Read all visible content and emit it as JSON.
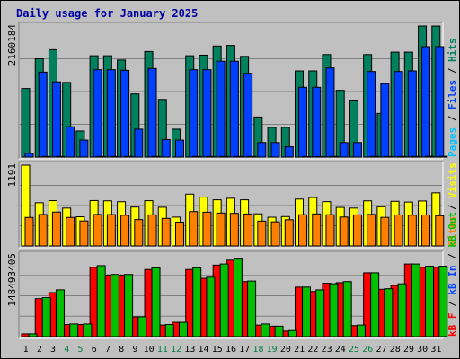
{
  "chart_data": {
    "type": "bar",
    "title": "Daily usage for January 2025",
    "categories": [
      "1",
      "2",
      "3",
      "4",
      "5",
      "6",
      "7",
      "8",
      "9",
      "10",
      "11",
      "12",
      "13",
      "14",
      "15",
      "16",
      "17",
      "18",
      "19",
      "20",
      "21",
      "22",
      "23",
      "24",
      "25",
      "26",
      "27",
      "28",
      "29",
      "30",
      "31"
    ],
    "weekend_days": [
      4,
      5,
      11,
      12,
      18,
      19,
      25,
      26
    ],
    "colors": {
      "hits": "#00805c",
      "files": "#0040ff",
      "pages": "#00c0ff",
      "visits": "#ffff00",
      "sites": "#ff8000",
      "kb_f": "#ff0000",
      "kb_in": "#00c000",
      "kb_out": "#ff8000",
      "weekday_label": "#000000",
      "weekend_label": "#008040"
    },
    "panels": [
      {
        "id": "hits-files-pages",
        "ymax_label": "2160184",
        "ymax": 2160184,
        "legend": [
          {
            "key": "pages",
            "label": "Pages",
            "color": "#00c0ff"
          },
          {
            "key": "sep1",
            "label": " / ",
            "color": "#000000"
          },
          {
            "key": "files",
            "label": "Files",
            "color": "#0040ff"
          },
          {
            "key": "sep2",
            "label": " / ",
            "color": "#000000"
          },
          {
            "key": "hits",
            "label": "Hits",
            "color": "#00805c"
          }
        ],
        "series": [
          {
            "key": "hits",
            "color": "#00805c",
            "values": [
              1130000,
              1620000,
              1770000,
              1230000,
              430000,
              1670000,
              1670000,
              1600000,
              1040000,
              1740000,
              950000,
              460000,
              1670000,
              1680000,
              1830000,
              1840000,
              1660000,
              660000,
              490000,
              490000,
              1420000,
              1420000,
              1690000,
              1100000,
              940000,
              1690000,
              720000,
              1730000,
              1730000,
              2160000,
              2160000
            ]
          },
          {
            "key": "files",
            "color": "#0040ff",
            "values": [
              60000,
              1400000,
              1240000,
              500000,
              280000,
              1440000,
              1440000,
              1430000,
              460000,
              1460000,
              290000,
              280000,
              1440000,
              1440000,
              1580000,
              1580000,
              1380000,
              240000,
              240000,
              170000,
              1150000,
              1150000,
              1470000,
              240000,
              240000,
              1410000,
              1210000,
              1410000,
              1420000,
              1820000,
              1820000
            ]
          },
          {
            "key": "pages",
            "color": "#00c0ff",
            "values": [
              6000,
              10000,
              10000,
              6000,
              4000,
              10000,
              10000,
              10000,
              4000,
              10000,
              4000,
              3000,
              10000,
              10000,
              10000,
              10000,
              10000,
              3000,
              3000,
              3000,
              8000,
              8000,
              10000,
              3000,
              3000,
              10000,
              9000,
              10000,
              10000,
              12000,
              12000
            ]
          }
        ]
      },
      {
        "id": "visits-sites",
        "ymax_label": "1191",
        "ymax": 1191,
        "legend": [
          {
            "key": "sites",
            "label": "Sites",
            "color": "#ff8000"
          },
          {
            "key": "sep1",
            "label": " / ",
            "color": "#000000"
          },
          {
            "key": "visits",
            "label": "Visits",
            "color": "#ffff00"
          }
        ],
        "series": [
          {
            "key": "visits",
            "color": "#ffff00",
            "values": [
              1191,
              637,
              668,
              558,
              430,
              669,
              665,
              652,
              573,
              667,
              570,
              425,
              764,
              720,
              680,
              703,
              680,
              473,
              423,
              433,
              691,
              714,
              653,
              568,
              558,
              665,
              578,
              658,
              647,
              663,
              783
            ]
          },
          {
            "key": "sites",
            "color": "#ff8000",
            "values": [
              420,
              464,
              500,
              420,
              368,
              464,
              462,
              452,
              388,
              458,
              406,
              350,
              506,
              498,
              485,
              480,
              471,
              366,
              355,
              386,
              460,
              472,
              460,
              426,
              458,
              465,
              421,
              457,
              453,
              457,
              446
            ]
          }
        ]
      },
      {
        "id": "kbf-kbin-kbout",
        "ymax_label": "148493405",
        "ymax": 148493405,
        "legend": [
          {
            "key": "kb_f",
            "label": "kB F",
            "color": "#ff0000"
          },
          {
            "key": "sep1",
            "label": " / ",
            "color": "#000000"
          },
          {
            "key": "kb_in",
            "label": "kB In",
            "color": "#0040ff"
          },
          {
            "key": "sep2",
            "label": " / ",
            "color": "#000000"
          },
          {
            "key": "kb_out",
            "label": "kB Out",
            "color": "#00c000"
          }
        ],
        "series": [
          {
            "key": "kb_f",
            "color": "#ff0000",
            "values": [
              5000000,
              69000000,
              80000000,
              22000000,
              22000000,
              126000000,
              112000000,
              112000000,
              36000000,
              122000000,
              21000000,
              26000000,
              122000000,
              106000000,
              130000000,
              139000000,
              100000000,
              21000000,
              19000000,
              10000000,
              90000000,
              82000000,
              97000000,
              98000000,
              20000000,
              116000000,
              86000000,
              93000000,
              132000000,
              126000000,
              126000000
            ]
          },
          {
            "key": "kb_in",
            "color": "#0040ff",
            "values": [
              0,
              0,
              0,
              0,
              0,
              0,
              0,
              0,
              0,
              0,
              0,
              0,
              0,
              0,
              0,
              0,
              0,
              0,
              0,
              0,
              0,
              0,
              0,
              0,
              0,
              0,
              0,
              0,
              0,
              0,
              0
            ]
          },
          {
            "key": "kb_out",
            "color": "#00c000",
            "values": [
              5000000,
              71000000,
              85000000,
              23000000,
              23000000,
              129000000,
              113000000,
              113000000,
              36000000,
              125000000,
              22000000,
              26000000,
              125000000,
              108000000,
              132000000,
              141000000,
              101000000,
              23000000,
              19000000,
              11000000,
              90000000,
              85000000,
              96000000,
              100000000,
              21000000,
              116000000,
              87000000,
              96000000,
              132000000,
              128000000,
              128000000
            ]
          }
        ]
      }
    ]
  }
}
